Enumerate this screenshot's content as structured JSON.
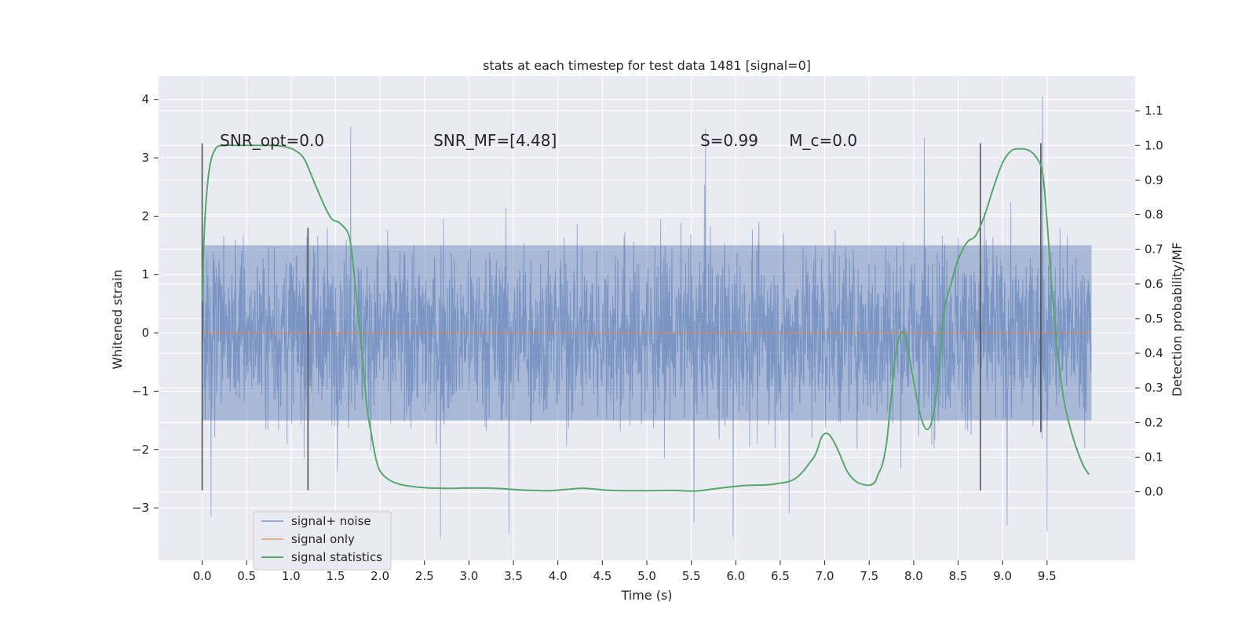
{
  "chart_data": {
    "type": "line",
    "title": "stats at each timestep for test data 1481 [signal=0]",
    "xlabel": "Time (s)",
    "ylabel": "Whitened strain",
    "ylabel_right": "Detection probability/MF",
    "xlim": [
      -0.49,
      10.49
    ],
    "ylim": [
      -3.9,
      4.4
    ],
    "ylim_right": [
      -0.198,
      1.2
    ],
    "x_ticks": [
      0.0,
      0.5,
      1.0,
      1.5,
      2.0,
      2.5,
      3.0,
      3.5,
      4.0,
      4.5,
      5.0,
      5.5,
      6.0,
      6.5,
      7.0,
      7.5,
      8.0,
      8.5,
      9.0,
      9.5
    ],
    "x_tick_labels": [
      "0.0",
      "0.5",
      "1.0",
      "1.5",
      "2.0",
      "2.5",
      "3.0",
      "3.5",
      "4.0",
      "4.5",
      "5.0",
      "5.5",
      "6.0",
      "6.5",
      "7.0",
      "7.5",
      "8.0",
      "8.5",
      "9.0",
      "9.5"
    ],
    "y_ticks": [
      -3,
      -2,
      -1,
      0,
      1,
      2,
      3,
      4
    ],
    "y_tick_labels": [
      "−3",
      "−2",
      "−1",
      "0",
      "1",
      "2",
      "3",
      "4"
    ],
    "y_right_ticks": [
      0.0,
      0.1,
      0.2,
      0.3,
      0.4,
      0.5,
      0.6,
      0.7,
      0.8,
      0.9,
      1.0,
      1.1
    ],
    "y_right_tick_labels": [
      "0.0",
      "0.1",
      "0.2",
      "0.3",
      "0.4",
      "0.5",
      "0.6",
      "0.7",
      "0.8",
      "0.9",
      "1.0",
      "1.1"
    ],
    "grid": true,
    "legend_position": "lower-left",
    "colors": {
      "plot_bg": "#eaeaf2",
      "grid": "#ffffff",
      "noise": "#4c72b0",
      "signal": "#dd8452",
      "stats": "#55a868",
      "markers": "#555555"
    },
    "series": [
      {
        "name": "signal+ noise",
        "kind": "noise",
        "x_range": [
          0.0,
          10.0
        ],
        "band_low": -1.5,
        "band_high": 1.5,
        "spike_min": -3.5,
        "spike_max": 4.05,
        "notable_spikes": [
          {
            "x": 0.0,
            "y": 3.2
          },
          {
            "x": 0.0,
            "y": -2.7
          },
          {
            "x": 0.1,
            "y": -3.15
          },
          {
            "x": 1.67,
            "y": 3.53
          },
          {
            "x": 2.68,
            "y": -3.5
          },
          {
            "x": 3.45,
            "y": -3.45
          },
          {
            "x": 5.66,
            "y": 3.5
          },
          {
            "x": 5.53,
            "y": -3.25
          },
          {
            "x": 5.97,
            "y": -3.5
          },
          {
            "x": 6.6,
            "y": -3.1
          },
          {
            "x": 8.12,
            "y": 3.35
          },
          {
            "x": 9.05,
            "y": -3.3
          },
          {
            "x": 9.45,
            "y": 4.05
          },
          {
            "x": 9.5,
            "y": -3.4
          }
        ]
      },
      {
        "name": "signal only",
        "kind": "line",
        "x": [
          0.0,
          10.0
        ],
        "y": [
          0.0,
          0.0
        ]
      },
      {
        "name": "signal statistics",
        "kind": "line",
        "axis": "right",
        "x": [
          0.0,
          0.03,
          0.08,
          0.15,
          0.25,
          0.4,
          0.6,
          0.8,
          0.95,
          1.05,
          1.15,
          1.25,
          1.35,
          1.45,
          1.55,
          1.65,
          1.7,
          1.75,
          1.8,
          1.85,
          1.9,
          1.95,
          2.0,
          2.1,
          2.25,
          2.5,
          2.8,
          3.0,
          3.3,
          3.6,
          3.9,
          4.1,
          4.3,
          4.6,
          5.0,
          5.3,
          5.55,
          5.8,
          6.1,
          6.35,
          6.5,
          6.6,
          6.68,
          6.76,
          6.82,
          6.9,
          6.97,
          7.05,
          7.15,
          7.25,
          7.35,
          7.45,
          7.52,
          7.57,
          7.6,
          7.65,
          7.7,
          7.75,
          7.8,
          7.85,
          7.9,
          7.95,
          8.0,
          8.05,
          8.1,
          8.15,
          8.2,
          8.25,
          8.3,
          8.35,
          8.42,
          8.5,
          8.6,
          8.7,
          8.8,
          8.9,
          9.0,
          9.1,
          9.2,
          9.3,
          9.38,
          9.45,
          9.5,
          9.55,
          9.62,
          9.7,
          9.8,
          9.9,
          9.97
        ],
        "y": [
          0.55,
          0.78,
          0.93,
          0.99,
          1.0,
          1.0,
          1.0,
          1.0,
          0.995,
          0.985,
          0.96,
          0.9,
          0.84,
          0.79,
          0.775,
          0.74,
          0.65,
          0.52,
          0.4,
          0.25,
          0.17,
          0.1,
          0.06,
          0.035,
          0.02,
          0.012,
          0.01,
          0.011,
          0.01,
          0.005,
          0.003,
          0.007,
          0.01,
          0.004,
          0.003,
          0.004,
          0.002,
          0.01,
          0.018,
          0.02,
          0.025,
          0.03,
          0.04,
          0.06,
          0.08,
          0.11,
          0.16,
          0.165,
          0.12,
          0.06,
          0.03,
          0.02,
          0.02,
          0.03,
          0.05,
          0.08,
          0.15,
          0.28,
          0.4,
          0.455,
          0.455,
          0.39,
          0.32,
          0.25,
          0.2,
          0.18,
          0.2,
          0.27,
          0.4,
          0.53,
          0.6,
          0.67,
          0.72,
          0.74,
          0.8,
          0.88,
          0.95,
          0.985,
          0.99,
          0.985,
          0.965,
          0.92,
          0.78,
          0.6,
          0.4,
          0.25,
          0.15,
          0.08,
          0.05
        ]
      }
    ],
    "marker_lines": [
      {
        "x": 0.0,
        "y_top": 3.25,
        "y_bottom": -2.7
      },
      {
        "x": 1.19,
        "y_top": 1.8,
        "y_bottom": -2.7
      },
      {
        "x": 8.75,
        "y_top": 3.25,
        "y_bottom": -2.7
      },
      {
        "x": 9.43,
        "y_top": 3.25,
        "y_bottom": -1.7
      }
    ],
    "annotations": [
      {
        "id": "snr-opt",
        "text": "SNR_opt=0.0",
        "x": 0.2,
        "y": 3.2
      },
      {
        "id": "snr-mf",
        "text": "SNR_MF=[4.48]",
        "x": 2.6,
        "y": 3.2
      },
      {
        "id": "s-value",
        "text": "S=0.99",
        "x": 5.6,
        "y": 3.2
      },
      {
        "id": "mc-value",
        "text": "M_c=0.0",
        "x": 6.6,
        "y": 3.2
      }
    ]
  }
}
